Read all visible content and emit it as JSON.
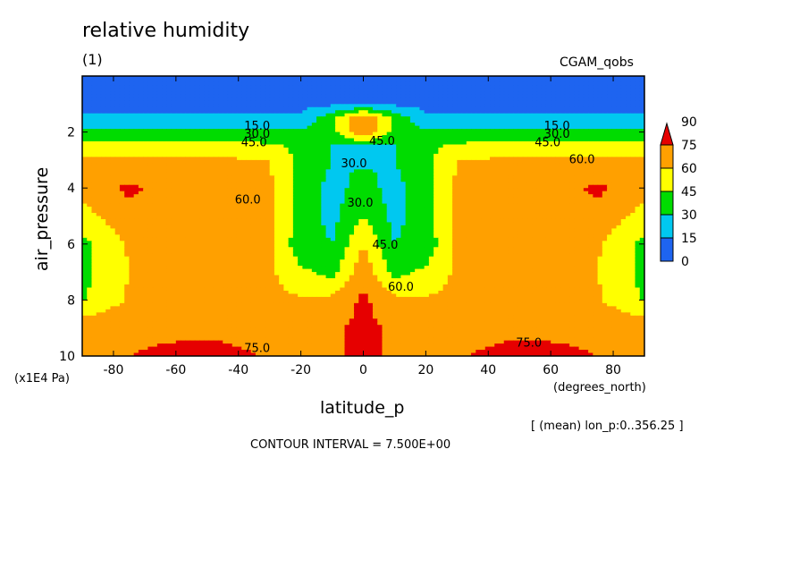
{
  "title": "relative humidity",
  "subtitle": "(1)",
  "dataset_label": "CGAM_qobs",
  "averaging_note": "[ (mean) lon_p:0..356.25 ]",
  "contour_interval_text": "CONTOUR INTERVAL = 7.500E+00",
  "chart_data": {
    "type": "heatmap",
    "title": "relative humidity",
    "xlabel": "latitude_p",
    "x_units": "(degrees_north)",
    "ylabel": "air_pressure",
    "y_units": "(x1E4 Pa)",
    "xlim": [
      -90,
      90
    ],
    "ylim": [
      10,
      0
    ],
    "x_ticks": [
      -80,
      -60,
      -40,
      -20,
      0,
      20,
      40,
      60,
      80
    ],
    "y_ticks": [
      2,
      4,
      6,
      8,
      10
    ],
    "colorbar": {
      "levels": [
        0,
        15,
        30,
        45,
        60,
        75,
        90
      ],
      "labels": [
        "0",
        "15",
        "30",
        "45",
        "60",
        "75",
        "90"
      ],
      "colors": [
        "#1e64f0",
        "#00c8f0",
        "#00dc00",
        "#ffff00",
        "#ffa000",
        "#e60000"
      ]
    },
    "latitudes": [
      -90,
      -75,
      -60,
      -45,
      -30,
      -20,
      -10,
      0,
      10,
      20,
      30,
      45,
      60,
      75,
      90
    ],
    "pressures": [
      0,
      1,
      1.5,
      2,
      2.5,
      3,
      4,
      5,
      6,
      7,
      8,
      9,
      10
    ],
    "values": [
      [
        5,
        5,
        5,
        5,
        5,
        5,
        5,
        5,
        5,
        5,
        5,
        5,
        5,
        5,
        5
      ],
      [
        10,
        10,
        10,
        10,
        10,
        10,
        12,
        14,
        12,
        10,
        10,
        10,
        10,
        10,
        10
      ],
      [
        18,
        18,
        18,
        18,
        18,
        18,
        40,
        75,
        40,
        18,
        18,
        18,
        18,
        18,
        18
      ],
      [
        33,
        33,
        33,
        33,
        33,
        33,
        40,
        77,
        40,
        33,
        33,
        33,
        33,
        33,
        33
      ],
      [
        50,
        50,
        50,
        50,
        48,
        40,
        30,
        28,
        30,
        40,
        48,
        50,
        50,
        50,
        50
      ],
      [
        62,
        62,
        62,
        62,
        60,
        40,
        30,
        28,
        30,
        40,
        60,
        62,
        62,
        62,
        62
      ],
      [
        65,
        78,
        68,
        65,
        63,
        40,
        25,
        35,
        25,
        40,
        63,
        65,
        68,
        78,
        65
      ],
      [
        55,
        70,
        66,
        64,
        63,
        40,
        25,
        45,
        25,
        40,
        63,
        64,
        66,
        70,
        55
      ],
      [
        40,
        62,
        64,
        64,
        63,
        35,
        30,
        60,
        30,
        35,
        63,
        64,
        64,
        62,
        40
      ],
      [
        40,
        60,
        63,
        64,
        63,
        48,
        40,
        70,
        40,
        48,
        63,
        64,
        63,
        60,
        40
      ],
      [
        44,
        62,
        63,
        64,
        64,
        62,
        64,
        78,
        64,
        62,
        64,
        64,
        63,
        62,
        44
      ],
      [
        70,
        72,
        72,
        72,
        71,
        70,
        73,
        78,
        73,
        70,
        71,
        72,
        72,
        72,
        70
      ],
      [
        72,
        75,
        78,
        78,
        74,
        72,
        74,
        77,
        74,
        72,
        74,
        78,
        78,
        75,
        72
      ]
    ],
    "contour_labels": [
      {
        "text": "15.0",
        "lat": -34,
        "p": 1.75
      },
      {
        "text": "30.0",
        "lat": -34,
        "p": 2.05
      },
      {
        "text": "45.0",
        "lat": -35,
        "p": 2.35
      },
      {
        "text": "60.0",
        "lat": -37,
        "p": 4.4
      },
      {
        "text": "75.0",
        "lat": -34,
        "p": 9.7
      },
      {
        "text": "15.0",
        "lat": 62,
        "p": 1.75
      },
      {
        "text": "30.0",
        "lat": 62,
        "p": 2.05
      },
      {
        "text": "45.0",
        "lat": 59,
        "p": 2.35
      },
      {
        "text": "60.0",
        "lat": 70,
        "p": 2.95
      },
      {
        "text": "75.0",
        "lat": 53,
        "p": 9.5
      },
      {
        "text": "45.0",
        "lat": 6,
        "p": 2.3
      },
      {
        "text": "30.0",
        "lat": -3,
        "p": 3.1
      },
      {
        "text": "30.0",
        "lat": -1,
        "p": 4.5
      },
      {
        "text": "45.0",
        "lat": 7,
        "p": 6.0
      },
      {
        "text": "60.0",
        "lat": 12,
        "p": 7.5
      }
    ]
  }
}
